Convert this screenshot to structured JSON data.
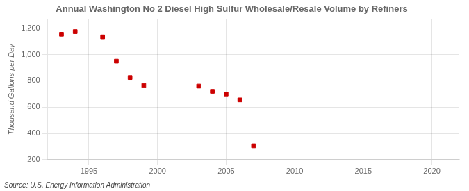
{
  "chart_data": {
    "type": "scatter",
    "title": "Annual Washington No 2 Diesel High Sulfur Wholesale/Resale Volume by Refiners",
    "ylabel": "Thousand Gallons per Day",
    "source": "Source: U.S. Energy Information Administration",
    "x": [
      1993,
      1994,
      1996,
      1997,
      1998,
      1999,
      2003,
      2004,
      2005,
      2006,
      2007
    ],
    "values": [
      1155,
      1175,
      1135,
      950,
      825,
      765,
      760,
      720,
      700,
      655,
      305
    ],
    "color": "#cc0000",
    "marker": "square",
    "xlim": [
      1992,
      2022
    ],
    "xticks": [
      1995,
      2000,
      2005,
      2010,
      2015,
      2020
    ],
    "ylim": [
      200,
      1270
    ],
    "yticks": [
      200,
      400,
      600,
      800,
      {
        "value": 1000,
        "label": "1,000"
      },
      {
        "value": 1200,
        "label": "1,200"
      }
    ],
    "grid": true
  }
}
